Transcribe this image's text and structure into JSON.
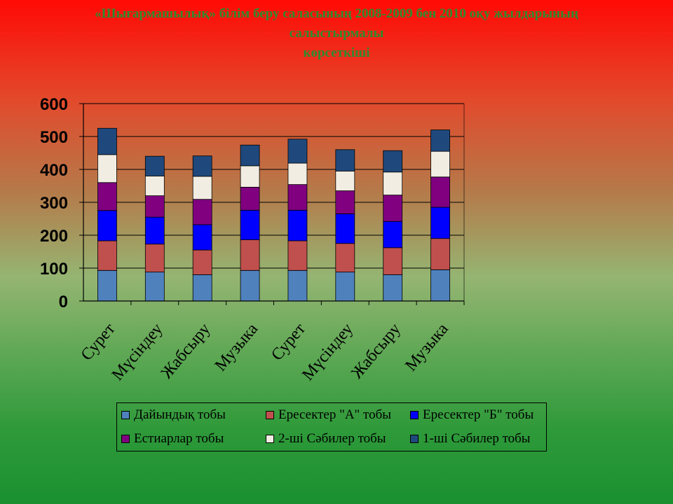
{
  "title": {
    "line1": "«Шығармашылық» білім беру саласының 2008-2009 бен 2010 оқу жылдарының",
    "line2": "салыстырмалы",
    "line3": "көрсеткіші"
  },
  "chart_data": {
    "type": "bar",
    "stacked": true,
    "title": "«Шығармашылық» білім беру саласының 2008-2009 бен 2010 оқу жылдарының салыстырмалы көрсеткіші",
    "xlabel": "",
    "ylabel": "",
    "ylim": [
      0,
      600
    ],
    "yticks": [
      "0",
      "100",
      "200",
      "300",
      "400",
      "500",
      "600"
    ],
    "categories": [
      "Сурет",
      "Мүсіндеу",
      "Жабсыру",
      "Музыка",
      "Сурет",
      "Мүсіндеу",
      "Жабсыру",
      "Музыка"
    ],
    "series": [
      {
        "name": "Дайындық тобы",
        "color": "#4f81bd",
        "values": [
          93,
          88,
          80,
          93,
          93,
          88,
          80,
          95
        ]
      },
      {
        "name": "Ересектер \"А\" тобы",
        "color": "#c0504d",
        "values": [
          90,
          85,
          75,
          93,
          90,
          87,
          82,
          95
        ]
      },
      {
        "name": "Ересектер \"Б\" тобы",
        "color": "#0000ff",
        "values": [
          92,
          82,
          77,
          90,
          93,
          90,
          80,
          95
        ]
      },
      {
        "name": "Естиарлар тобы",
        "color": "#800080",
        "values": [
          85,
          65,
          77,
          70,
          78,
          70,
          80,
          92
        ]
      },
      {
        "name": "2-ші Сәбилер тобы",
        "color": "#f2ede2",
        "values": [
          85,
          60,
          70,
          65,
          65,
          60,
          70,
          78
        ]
      },
      {
        "name": "1-ші Сәбилер тобы",
        "color": "#1f497d",
        "values": [
          80,
          60,
          62,
          63,
          73,
          65,
          65,
          65
        ]
      }
    ],
    "legend_position": "bottom",
    "grid": true
  }
}
